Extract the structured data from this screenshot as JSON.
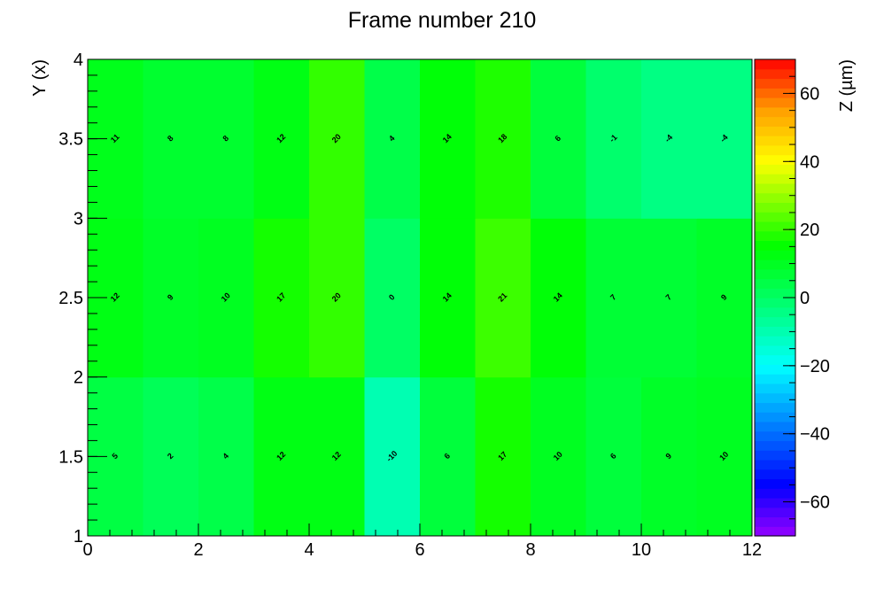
{
  "chart_data": {
    "type": "heatmap",
    "title": "Frame number 210",
    "xlabel": "",
    "ylabel": "Y (x)",
    "zlabel": "Z (µm)",
    "xlim": [
      0,
      12
    ],
    "ylim": [
      1,
      4
    ],
    "zlim": [
      -70,
      70
    ],
    "x_ticks": [
      "0",
      "2",
      "4",
      "6",
      "8",
      "10",
      "12"
    ],
    "y_ticks": [
      "1",
      "1.5",
      "2",
      "2.5",
      "3",
      "3.5",
      "4"
    ],
    "z_ticks": [
      "−60",
      "−40",
      "−20",
      "0",
      "20",
      "40",
      "60"
    ],
    "x_edges": [
      0,
      1,
      2,
      3,
      4,
      5,
      6,
      7,
      8,
      9,
      10,
      11,
      12
    ],
    "y_edges": [
      1,
      2,
      3,
      4
    ],
    "z": [
      [
        5,
        2,
        4,
        12,
        12,
        -10,
        6,
        17,
        10,
        6,
        9,
        10
      ],
      [
        12,
        9,
        10,
        17,
        20,
        0,
        14,
        21,
        14,
        7,
        7,
        9
      ],
      [
        11,
        8,
        8,
        12,
        20,
        4,
        14,
        18,
        6,
        -1,
        -4,
        -4
      ]
    ],
    "palette": "rainbow (violet → blue → cyan → green → yellow → orange → red)",
    "grid": false
  }
}
